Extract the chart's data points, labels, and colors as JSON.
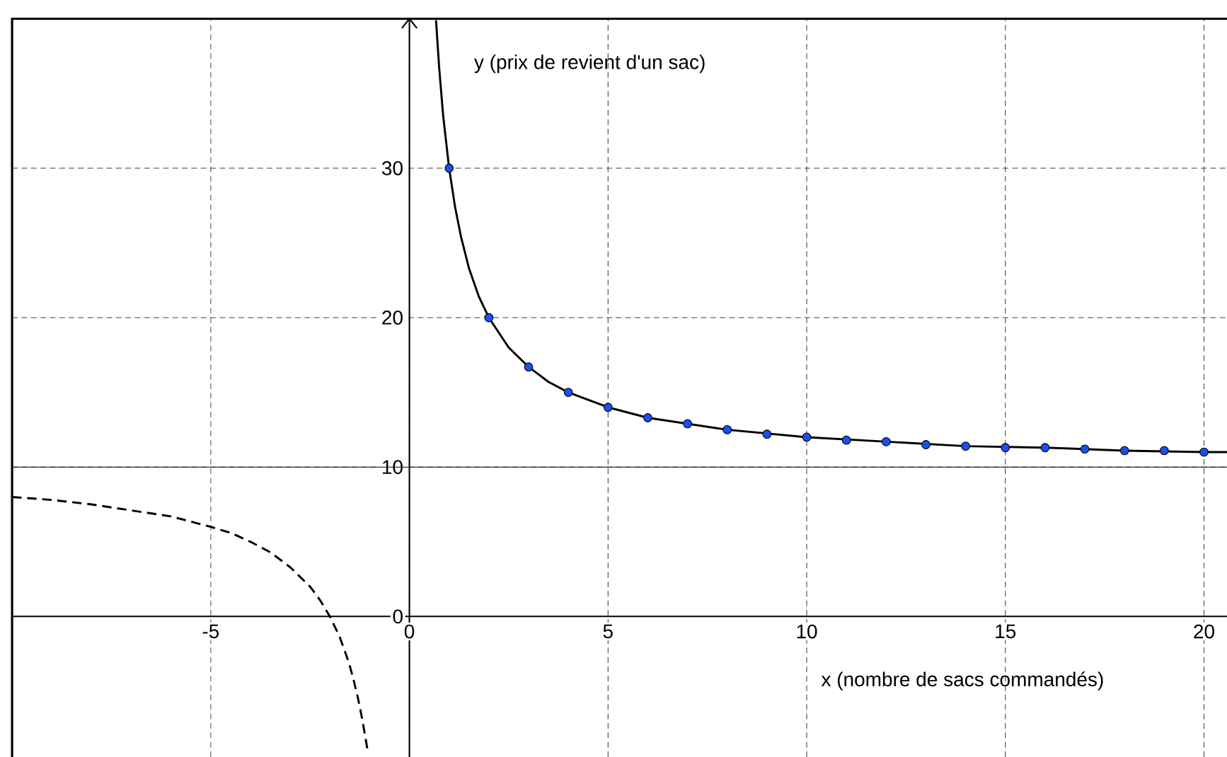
{
  "chart_data": {
    "type": "line",
    "xlabel": "x (nombre de sacs commandés)",
    "ylabel": "y (prix de revient d'un sac)",
    "xlim": [
      -10,
      20.6
    ],
    "ylim": [
      -9.4,
      40
    ],
    "xticks": [
      -5,
      0,
      5,
      10,
      15,
      20
    ],
    "yticks": [
      0,
      10,
      20,
      30
    ],
    "grid": true,
    "ref_lines": [
      {
        "axis": "y",
        "value": 10,
        "color": "#000000",
        "line_style": "solid"
      }
    ],
    "series": [
      {
        "color": "#000000",
        "line_style": "solid",
        "marker": "none",
        "x": [
          0.67,
          0.75,
          0.85,
          1,
          1.15,
          1.3,
          1.5,
          1.75,
          2,
          2.5,
          3,
          3.5,
          4,
          5,
          6,
          7,
          8,
          10,
          12,
          14,
          16,
          18,
          20,
          20.6
        ],
        "values": [
          39.9,
          36.7,
          33.5,
          30,
          27.4,
          25.4,
          23.3,
          21.4,
          20,
          18,
          16.7,
          15.7,
          15,
          14,
          13.3,
          12.9,
          12.5,
          12,
          11.7,
          11.4,
          11.3,
          11.1,
          11,
          11
        ]
      },
      {
        "color": "#000000",
        "line_style": "dashed",
        "marker": "none",
        "x": [
          -10,
          -9,
          -8,
          -7,
          -6,
          -5,
          -4.5,
          -4,
          -3.5,
          -3,
          -2.5,
          -2.25,
          -2,
          -1.75,
          -1.6,
          -1.5,
          -1.4,
          -1.3,
          -1.2,
          -1.1,
          -1.05
        ],
        "values": [
          8,
          7.8,
          7.5,
          7.1,
          6.7,
          6,
          5.6,
          5,
          4.3,
          3.3,
          2,
          1.1,
          0,
          -1.4,
          -2.5,
          -3.3,
          -4.3,
          -5.4,
          -6.7,
          -8.2,
          -9
        ]
      },
      {
        "type": "scatter",
        "color": "#1a4fe8",
        "marker": "circle",
        "x": [
          1,
          2,
          3,
          4,
          5,
          6,
          7,
          8,
          9,
          10,
          11,
          12,
          13,
          14,
          15,
          16,
          17,
          18,
          19,
          20
        ],
        "values": [
          30,
          20,
          16.7,
          15,
          14,
          13.3,
          12.9,
          12.5,
          12.2,
          12,
          11.8,
          11.7,
          11.5,
          11.4,
          11.3,
          11.3,
          11.2,
          11.1,
          11.1,
          11
        ]
      }
    ]
  }
}
